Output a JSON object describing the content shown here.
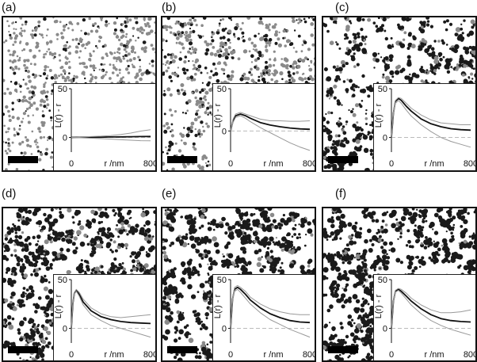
{
  "figure": {
    "panels": [
      {
        "label": "(a)",
        "density": 0.55,
        "dark": 0.15,
        "cluster": 0.0
      },
      {
        "label": "(b)",
        "density": 0.6,
        "dark": 0.35,
        "cluster": 0.25
      },
      {
        "label": "(c)",
        "density": 0.75,
        "dark": 0.8,
        "cluster": 0.6
      },
      {
        "label": "(d)",
        "density": 0.85,
        "dark": 0.85,
        "cluster": 0.55
      },
      {
        "label": "(e)",
        "density": 0.9,
        "dark": 0.9,
        "cluster": 0.65
      },
      {
        "label": "(f)",
        "density": 1.0,
        "dark": 0.95,
        "cluster": 0.7
      }
    ],
    "colors": {
      "main_curve": "#111111",
      "envelope": "#999999",
      "zero_line": "#bbbbbb",
      "dots_light": "#8a8a8a",
      "dots_dark": "#1a1a1a"
    }
  },
  "chart_data": [
    {
      "type": "line",
      "panel": "(a)",
      "xlabel": "r  /nm",
      "ylabel": "L(r) - r",
      "xlim": [
        0,
        800
      ],
      "ylim": [
        -15,
        50
      ],
      "x_ticks": [
        "0",
        "800"
      ],
      "y_ticks": [
        "0",
        "50"
      ],
      "x": [
        0,
        50,
        100,
        150,
        200,
        300,
        400,
        500,
        600,
        700,
        800
      ],
      "series": [
        {
          "role": "L(r)-r",
          "values": [
            0,
            0.2,
            0.3,
            0.3,
            0.2,
            0.3,
            0.5,
            0.6,
            0.8,
            0.9,
            1.0
          ]
        },
        {
          "role": "upper envelope",
          "values": [
            0,
            0.3,
            0.5,
            0.7,
            0.9,
            1.3,
            2.0,
            3.0,
            4.5,
            6.5,
            8.0
          ]
        },
        {
          "role": "lower envelope",
          "values": [
            0,
            -0.2,
            -0.4,
            -0.6,
            -0.8,
            -1.2,
            -1.7,
            -2.3,
            -2.8,
            -3.3,
            -3.5
          ]
        }
      ]
    },
    {
      "type": "line",
      "panel": "(b)",
      "xlabel": "r  /nm",
      "ylabel": "L(r) - r",
      "xlim": [
        0,
        800
      ],
      "ylim": [
        -25,
        50
      ],
      "x_ticks": [
        "0",
        "800"
      ],
      "y_ticks": [
        "0",
        "50"
      ],
      "x": [
        0,
        25,
        50,
        100,
        150,
        200,
        300,
        400,
        500,
        600,
        700,
        800
      ],
      "series": [
        {
          "role": "L(r)-r",
          "values": [
            0,
            12,
            18,
            20,
            18,
            15,
            10,
            7,
            5,
            3.5,
            2.5,
            2
          ]
        },
        {
          "role": "upper envelope",
          "values": [
            0,
            14,
            20,
            22,
            20,
            18,
            14,
            12,
            12,
            11.5,
            11.5,
            12
          ]
        },
        {
          "role": "lower envelope",
          "values": [
            0,
            10,
            16,
            18,
            15,
            11,
            4,
            -2,
            -8,
            -14,
            -19,
            -23
          ]
        }
      ]
    },
    {
      "type": "line",
      "panel": "(c)",
      "xlabel": "r  /nm",
      "ylabel": "L(r) - r",
      "xlim": [
        0,
        800
      ],
      "ylim": [
        -15,
        50
      ],
      "x_ticks": [
        "0",
        "800"
      ],
      "y_ticks": [
        "0",
        "50"
      ],
      "x": [
        0,
        20,
        40,
        70,
        100,
        150,
        200,
        300,
        400,
        500,
        600,
        700,
        800
      ],
      "series": [
        {
          "role": "L(r)-r",
          "values": [
            0,
            25,
            37,
            40,
            38,
            32,
            27,
            19,
            14,
            11,
            9,
            8,
            7.5
          ]
        },
        {
          "role": "upper envelope",
          "values": [
            0,
            26,
            38,
            41,
            40,
            35,
            30,
            23,
            18,
            15,
            14,
            13,
            13
          ]
        },
        {
          "role": "lower envelope",
          "values": [
            0,
            24,
            35,
            38,
            35,
            28,
            22,
            13,
            6,
            0,
            -4,
            -7,
            -10
          ]
        }
      ]
    },
    {
      "type": "line",
      "panel": "(d)",
      "xlabel": "r  /nm",
      "ylabel": "L(r) - r",
      "xlim": [
        0,
        800
      ],
      "ylim": [
        -15,
        50
      ],
      "x_ticks": [
        "0",
        "800"
      ],
      "y_ticks": [
        "0",
        "50"
      ],
      "x": [
        0,
        15,
        30,
        50,
        80,
        120,
        200,
        300,
        400,
        500,
        600,
        700,
        800
      ],
      "series": [
        {
          "role": "L(r)-r",
          "values": [
            0,
            25,
            36,
            39,
            35,
            27,
            18,
            12,
            9,
            7,
            6,
            5.5,
            5
          ]
        },
        {
          "role": "upper envelope",
          "values": [
            0,
            26,
            37,
            40,
            37,
            30,
            21,
            15,
            12,
            11,
            12,
            13,
            14
          ]
        },
        {
          "role": "lower envelope",
          "values": [
            0,
            24,
            35,
            38,
            33,
            24,
            14,
            8,
            3,
            0,
            -3,
            -6,
            -9
          ]
        }
      ]
    },
    {
      "type": "line",
      "panel": "(e)",
      "xlabel": "r  /nm",
      "ylabel": "L(r) - r",
      "xlim": [
        0,
        800
      ],
      "ylim": [
        -15,
        50
      ],
      "x_ticks": [
        "0",
        "800"
      ],
      "y_ticks": [
        "0",
        "50"
      ],
      "x": [
        0,
        20,
        40,
        70,
        100,
        150,
        200,
        300,
        400,
        500,
        600,
        700,
        800
      ],
      "series": [
        {
          "role": "L(r)-r",
          "values": [
            0,
            30,
            40,
            42,
            40,
            35,
            29,
            21,
            15,
            11,
            8,
            6.5,
            6
          ]
        },
        {
          "role": "upper envelope",
          "values": [
            0,
            31,
            42,
            44,
            42,
            38,
            32,
            25,
            20,
            17,
            15,
            14,
            14
          ]
        },
        {
          "role": "lower envelope",
          "values": [
            0,
            29,
            38,
            40,
            37,
            31,
            25,
            16,
            9,
            4,
            -1,
            -5,
            -9
          ]
        }
      ]
    },
    {
      "type": "line",
      "panel": "(f)",
      "xlabel": "r  /nm",
      "ylabel": "L(r) - r",
      "xlim": [
        0,
        800
      ],
      "ylim": [
        -15,
        50
      ],
      "x_ticks": [
        "0",
        "800"
      ],
      "y_ticks": [
        "0",
        "50"
      ],
      "x": [
        0,
        20,
        40,
        70,
        100,
        150,
        200,
        300,
        400,
        500,
        600,
        700,
        800
      ],
      "series": [
        {
          "role": "L(r)-r",
          "values": [
            0,
            28,
            38,
            40,
            38,
            33,
            28,
            20,
            14,
            10,
            8,
            7,
            6.5
          ]
        },
        {
          "role": "upper envelope",
          "values": [
            0,
            29,
            39,
            41,
            40,
            36,
            31,
            24,
            19,
            16,
            16,
            17,
            19
          ]
        },
        {
          "role": "lower envelope",
          "values": [
            0,
            27,
            37,
            39,
            36,
            30,
            24,
            15,
            8,
            3,
            -1,
            -4,
            -7
          ]
        }
      ]
    }
  ]
}
